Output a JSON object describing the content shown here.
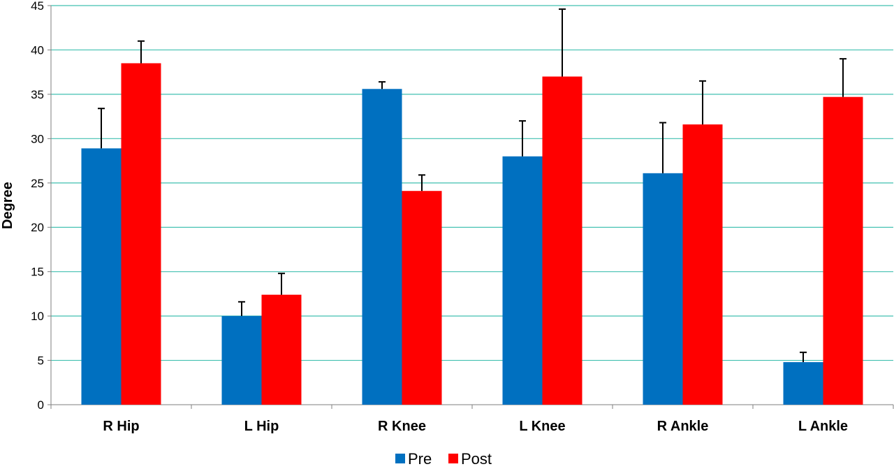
{
  "chart_data": {
    "type": "bar",
    "title": "",
    "xlabel": "",
    "ylabel": "Degree",
    "ylim": [
      0,
      45
    ],
    "yticks": [
      0,
      5,
      10,
      15,
      20,
      25,
      30,
      35,
      40,
      45
    ],
    "grid": true,
    "legend_position": "bottom",
    "categories": [
      "R Hip",
      "L Hip",
      "R Knee",
      "L Knee",
      "R Ankle",
      "L Ankle"
    ],
    "series": [
      {
        "name": "Pre",
        "color": "#0070C0",
        "values": [
          28.9,
          10.0,
          35.6,
          28.0,
          26.1,
          4.8
        ],
        "error": [
          4.5,
          1.6,
          0.8,
          4.0,
          5.7,
          1.1
        ]
      },
      {
        "name": "Post",
        "color": "#FF0000",
        "values": [
          38.5,
          12.4,
          24.1,
          37.0,
          31.6,
          34.7
        ],
        "error": [
          2.5,
          2.4,
          1.8,
          7.6,
          4.9,
          4.3
        ]
      }
    ],
    "grid_color": "#40C0B0"
  }
}
